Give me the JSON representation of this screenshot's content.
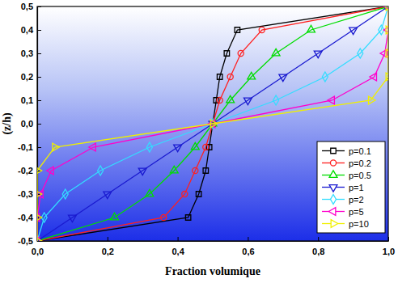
{
  "chart_data": {
    "type": "line",
    "x_label": "Fraction volumique",
    "y_label": "(z/h)",
    "xlim": [
      0,
      1
    ],
    "ylim": [
      -0.5,
      0.5
    ],
    "xticks": [
      {
        "value": 0,
        "label": "0,0"
      },
      {
        "value": 0.2,
        "label": "0,2"
      },
      {
        "value": 0.4,
        "label": "0,4"
      },
      {
        "value": 0.6,
        "label": "0,6"
      },
      {
        "value": 0.8,
        "label": "0,8"
      },
      {
        "value": 1,
        "label": "1,0"
      }
    ],
    "yticks": [
      {
        "value": -0.5,
        "label": "-0,5"
      },
      {
        "value": -0.4,
        "label": "-0,4"
      },
      {
        "value": -0.3,
        "label": "-0,3"
      },
      {
        "value": -0.2,
        "label": "-0,2"
      },
      {
        "value": -0.1,
        "label": "-0,1"
      },
      {
        "value": 0,
        "label": "0,0"
      },
      {
        "value": 0.1,
        "label": "0,1"
      },
      {
        "value": 0.2,
        "label": "0,2"
      },
      {
        "value": 0.3,
        "label": "0,3"
      },
      {
        "value": 0.4,
        "label": "0,4"
      },
      {
        "value": 0.5,
        "label": "0,5"
      }
    ],
    "legend": "lower right",
    "series": [
      {
        "name": "p=0.1",
        "color": "#000000",
        "marker": "square",
        "x": [
          0,
          0.43,
          0.46,
          0.48,
          0.49,
          0.5,
          0.51,
          0.52,
          0.54,
          0.57,
          1
        ],
        "values": [
          -0.5,
          -0.4,
          -0.3,
          -0.2,
          -0.1,
          0,
          0.1,
          0.2,
          0.3,
          0.4,
          0.5
        ]
      },
      {
        "name": "p=0.2",
        "color": "#ff2020",
        "marker": "circle",
        "x": [
          0,
          0.36,
          0.42,
          0.45,
          0.48,
          0.5,
          0.52,
          0.55,
          0.58,
          0.64,
          1
        ],
        "values": [
          -0.5,
          -0.4,
          -0.3,
          -0.2,
          -0.1,
          0,
          0.1,
          0.2,
          0.3,
          0.4,
          0.5
        ]
      },
      {
        "name": "p=0.5",
        "color": "#00dd00",
        "marker": "triangle-up",
        "x": [
          0,
          0.22,
          0.32,
          0.39,
          0.45,
          0.5,
          0.55,
          0.61,
          0.68,
          0.78,
          1
        ],
        "values": [
          -0.5,
          -0.4,
          -0.3,
          -0.2,
          -0.1,
          0,
          0.1,
          0.2,
          0.3,
          0.4,
          0.5
        ]
      },
      {
        "name": "p=1",
        "color": "#1a1ad0",
        "marker": "triangle-down",
        "x": [
          0,
          0.1,
          0.2,
          0.3,
          0.4,
          0.5,
          0.6,
          0.7,
          0.8,
          0.9,
          1
        ],
        "values": [
          -0.5,
          -0.4,
          -0.3,
          -0.2,
          -0.1,
          0,
          0.1,
          0.2,
          0.3,
          0.4,
          0.5
        ]
      },
      {
        "name": "p=2",
        "color": "#33ddff",
        "marker": "diamond",
        "x": [
          0,
          0.02,
          0.08,
          0.18,
          0.32,
          0.5,
          0.68,
          0.82,
          0.92,
          0.98,
          1
        ],
        "values": [
          -0.5,
          -0.4,
          -0.3,
          -0.2,
          -0.1,
          0,
          0.1,
          0.2,
          0.3,
          0.4,
          0.5
        ]
      },
      {
        "name": "p=5",
        "color": "#ff00cc",
        "marker": "triangle-left",
        "x": [
          0,
          0,
          0.01,
          0.04,
          0.16,
          0.5,
          0.84,
          0.96,
          0.99,
          1,
          1
        ],
        "values": [
          -0.5,
          -0.4,
          -0.3,
          -0.2,
          -0.1,
          0,
          0.1,
          0.2,
          0.3,
          0.4,
          0.5
        ]
      },
      {
        "name": "p=10",
        "color": "#f0f000",
        "marker": "triangle-right",
        "x": [
          0,
          0,
          0,
          0,
          0.05,
          0.5,
          0.95,
          1,
          1,
          1,
          1
        ],
        "values": [
          -0.5,
          -0.4,
          -0.3,
          -0.2,
          -0.1,
          0,
          0.1,
          0.2,
          0.3,
          0.4,
          0.5
        ]
      }
    ]
  }
}
